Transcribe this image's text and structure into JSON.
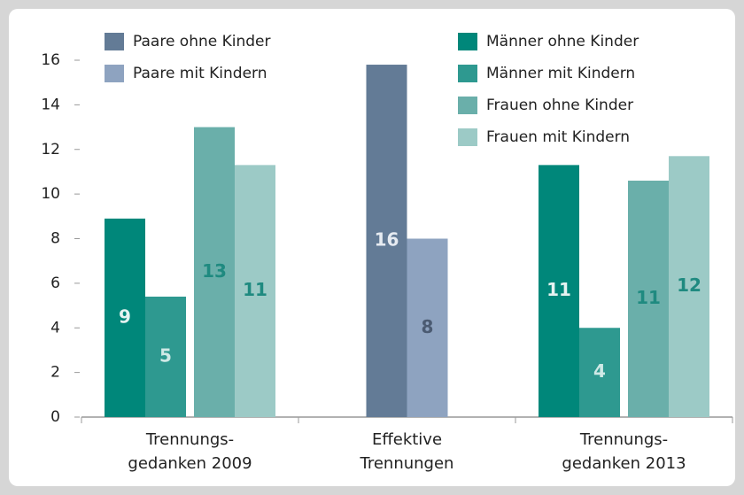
{
  "chart_data": {
    "type": "bar",
    "categories": [
      "Trennungs-\ngedanken 2009",
      "Effektive\nTrennungen",
      "Trennungs-\ngedanken 2013"
    ],
    "series": [
      {
        "name": "Paare ohne Kinder",
        "color": "#637b96",
        "label_color": "#e6ebf1",
        "values": [
          null,
          15.8,
          null
        ],
        "value_labels": [
          null,
          "16",
          null
        ]
      },
      {
        "name": "Paare mit Kindern",
        "color": "#8ea3c0",
        "label_color": "#4b5b72",
        "values": [
          null,
          8.0,
          null
        ],
        "value_labels": [
          null,
          "8",
          null
        ]
      },
      {
        "name": "Männer ohne Kinder",
        "color": "#00877a",
        "label_color": "#e6f3f1",
        "values": [
          8.9,
          null,
          11.3
        ],
        "value_labels": [
          "9",
          null,
          "11"
        ]
      },
      {
        "name": "Männer mit Kindern",
        "color": "#2e9990",
        "label_color": "#cfe9e6",
        "values": [
          5.4,
          null,
          4.0
        ],
        "value_labels": [
          "5",
          null,
          "4"
        ]
      },
      {
        "name": "Frauen ohne Kinder",
        "color": "#6aafaa",
        "label_color": "#1f8a80",
        "values": [
          13.0,
          null,
          10.6
        ],
        "value_labels": [
          "13",
          null,
          "11"
        ]
      },
      {
        "name": "Frauen  mit Kindern",
        "color": "#9ccac6",
        "label_color": "#1f8a80",
        "values": [
          11.3,
          null,
          11.7
        ],
        "value_labels": [
          "11",
          null,
          "12"
        ]
      }
    ],
    "ylim": [
      0,
      16
    ],
    "yticks": [
      0,
      2,
      4,
      6,
      8,
      10,
      12,
      14,
      16
    ],
    "grid": false
  }
}
